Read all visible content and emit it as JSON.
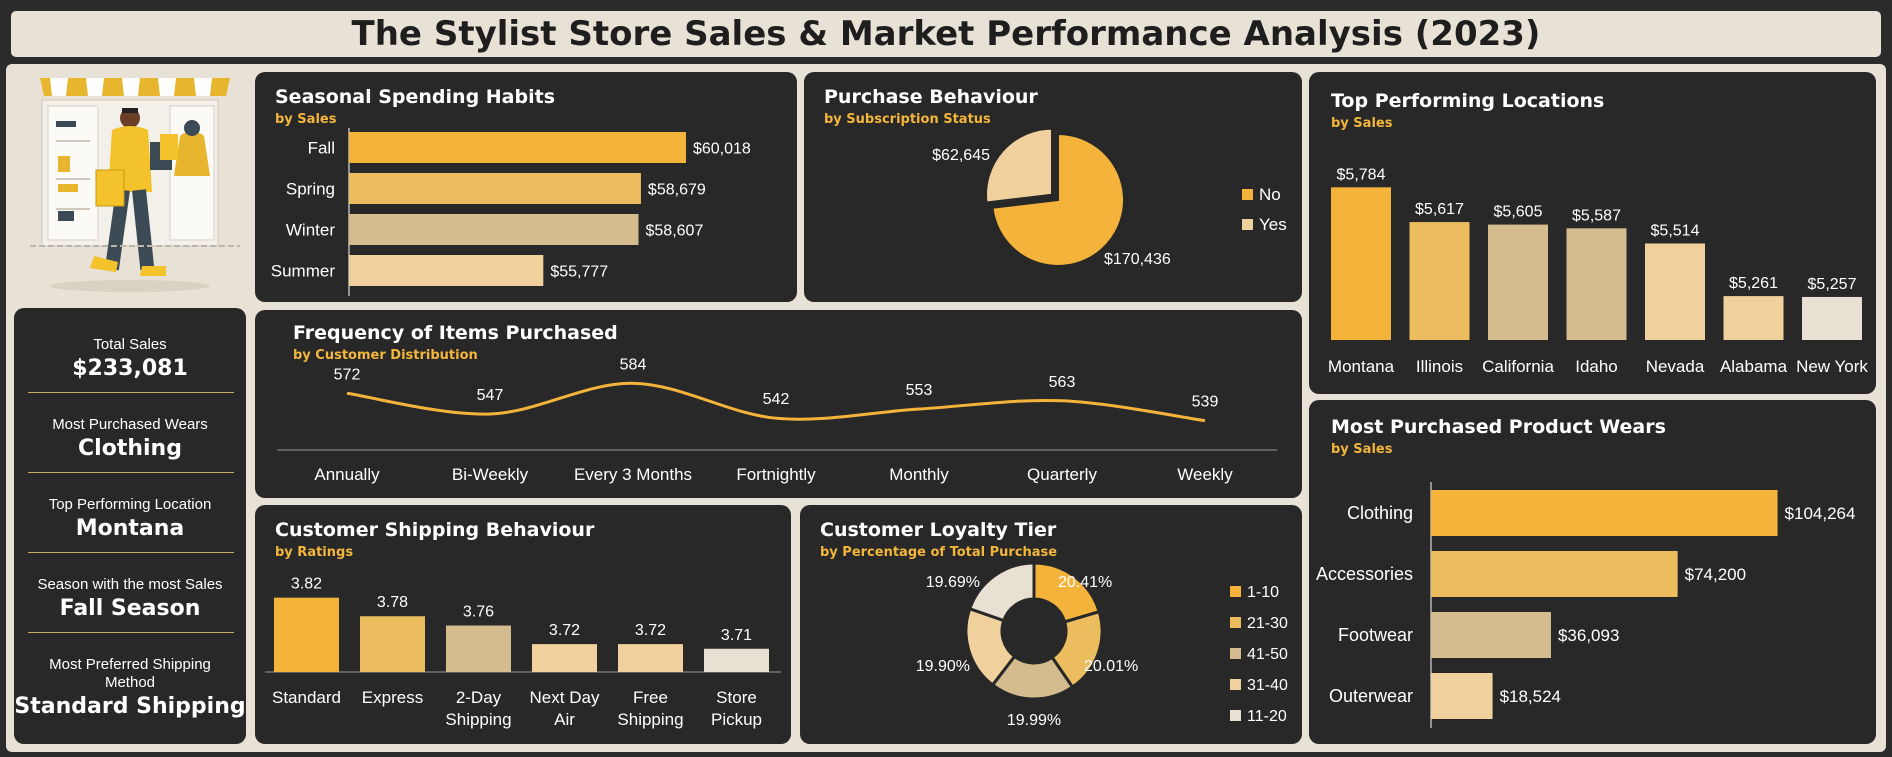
{
  "title": "The Stylist Store Sales & Market Performance Analysis (2023)",
  "kpis": [
    {
      "label": "Total Sales",
      "value": "$233,081"
    },
    {
      "label": "Most Purchased Wears",
      "value": "Clothing"
    },
    {
      "label": "Top Performing Location",
      "value": "Montana"
    },
    {
      "label": "Season with the most Sales",
      "value": "Fall Season"
    },
    {
      "label": "Most Preferred Shipping Method",
      "value": "Standard Shipping"
    }
  ],
  "colors": {
    "c1": "#f4b33a",
    "c2": "#ebbd5e",
    "c3": "#d4bc8e",
    "c4": "#f0d19e",
    "c5": "#e7e0d3",
    "panel": "#282828"
  },
  "chart_data": [
    {
      "id": "seasonal",
      "type": "bar",
      "orientation": "horizontal",
      "title": "Seasonal Spending Habits",
      "subtitle": "by Sales",
      "categories": [
        "Fall",
        "Spring",
        "Winter",
        "Summer"
      ],
      "values": [
        60018,
        58679,
        58607,
        55777
      ],
      "labels": [
        "$60,018",
        "$58,679",
        "$58,607",
        "$55,777"
      ],
      "xlim": [
        50000,
        61000
      ]
    },
    {
      "id": "subscription",
      "type": "pie",
      "title": "Purchase Behaviour",
      "subtitle": "by Subscription Status",
      "categories": [
        "No",
        "Yes"
      ],
      "values": [
        170436,
        62645
      ],
      "labels": [
        "$170,436",
        "$62,645"
      ],
      "legend": "right"
    },
    {
      "id": "locations",
      "type": "bar",
      "title": "Top Performing Locations",
      "subtitle": "by Sales",
      "categories": [
        "Montana",
        "Illinois",
        "California",
        "Idaho",
        "Nevada",
        "Alabama",
        "New York"
      ],
      "values": [
        5784,
        5617,
        5605,
        5587,
        5514,
        5261,
        5257
      ],
      "labels": [
        "$5,784",
        "$5,617",
        "$5,605",
        "$5,587",
        "$5,514",
        "$5,261",
        "$5,257"
      ],
      "ylim": [
        5050,
        5800
      ]
    },
    {
      "id": "frequency",
      "type": "line",
      "title": "Frequency of Items Purchased",
      "subtitle": "by Customer Distribution",
      "categories": [
        "Annually",
        "Bi-Weekly",
        "Every 3 Months",
        "Fortnightly",
        "Monthly",
        "Quarterly",
        "Weekly"
      ],
      "values": [
        572,
        547,
        584,
        542,
        553,
        563,
        539
      ],
      "labels": [
        "572",
        "547",
        "584",
        "542",
        "553",
        "563",
        "539"
      ]
    },
    {
      "id": "shipping",
      "type": "bar",
      "title": "Customer Shipping Behaviour",
      "subtitle": "by Ratings",
      "categories": [
        "Standard",
        "Express",
        "2-Day Shipping",
        "Next Day Air",
        "Free Shipping",
        "Store Pickup"
      ],
      "category_lines": [
        [
          "Standard"
        ],
        [
          "Express"
        ],
        [
          "2-Day",
          "Shipping"
        ],
        [
          "Next Day",
          "Air"
        ],
        [
          "Free",
          "Shipping"
        ],
        [
          "Store",
          "Pickup"
        ]
      ],
      "values": [
        3.82,
        3.78,
        3.76,
        3.72,
        3.72,
        3.71
      ],
      "labels": [
        "3.82",
        "3.78",
        "3.76",
        "3.72",
        "3.72",
        "3.71"
      ],
      "ylim": [
        3.66,
        3.83
      ]
    },
    {
      "id": "loyalty",
      "type": "pie",
      "donut": true,
      "title": "Customer Loyalty Tier",
      "subtitle": "by Percentage of Total Purchase",
      "categories": [
        "1-10",
        "21-30",
        "41-50",
        "31-40",
        "11-20"
      ],
      "values": [
        20.41,
        20.01,
        19.99,
        19.9,
        19.69
      ],
      "labels": [
        "20.41%",
        "20.01%",
        "19.99%",
        "19.90%",
        "19.69%"
      ],
      "legend": "right"
    },
    {
      "id": "products",
      "type": "bar",
      "orientation": "horizontal",
      "title": "Most Purchased Product Wears",
      "subtitle": "by Sales",
      "categories": [
        "Clothing",
        "Accessories",
        "Footwear",
        "Outerwear"
      ],
      "values": [
        104264,
        74200,
        36093,
        18524
      ],
      "labels": [
        "$104,264",
        "$74,200",
        "$36,093",
        "$18,524"
      ],
      "xlim": [
        0,
        105000
      ]
    }
  ]
}
